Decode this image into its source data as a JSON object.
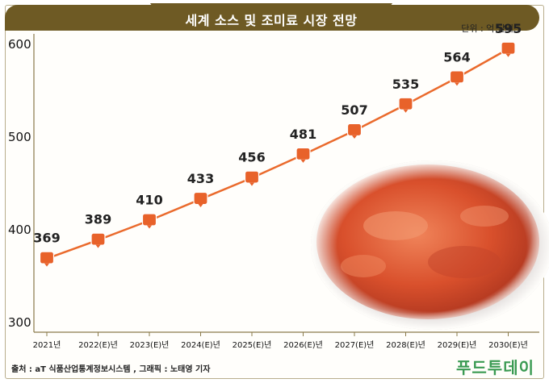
{
  "title": "세계 소스 및 조미료 시장 전망",
  "unit": "단위 : 억 달러",
  "source": "출처 : aT 식품산업통계정보시스템 , 그래픽 : 노태영 기자",
  "brand": "푸드투데이",
  "colors": {
    "banner": "#6e5a24",
    "line": "#ea6a2c",
    "marker": "#e8622a",
    "brand": "#3a9a52"
  },
  "chart_data": {
    "type": "line",
    "categories": [
      "2021년",
      "2022(E)년",
      "2023(E)년",
      "2024(E)년",
      "2025(E)년",
      "2026(E)년",
      "2027(E)년",
      "2028(E)년",
      "2029(E)년",
      "2030(E)년"
    ],
    "series": [
      {
        "values": [
          369,
          389,
          410,
          433,
          456,
          481,
          507,
          535,
          564,
          595
        ]
      }
    ],
    "y_ticks": [
      300,
      400,
      500,
      600
    ],
    "ylim": [
      300,
      600
    ],
    "xlabel": "",
    "ylabel": "",
    "grid": false,
    "legend": "none"
  }
}
